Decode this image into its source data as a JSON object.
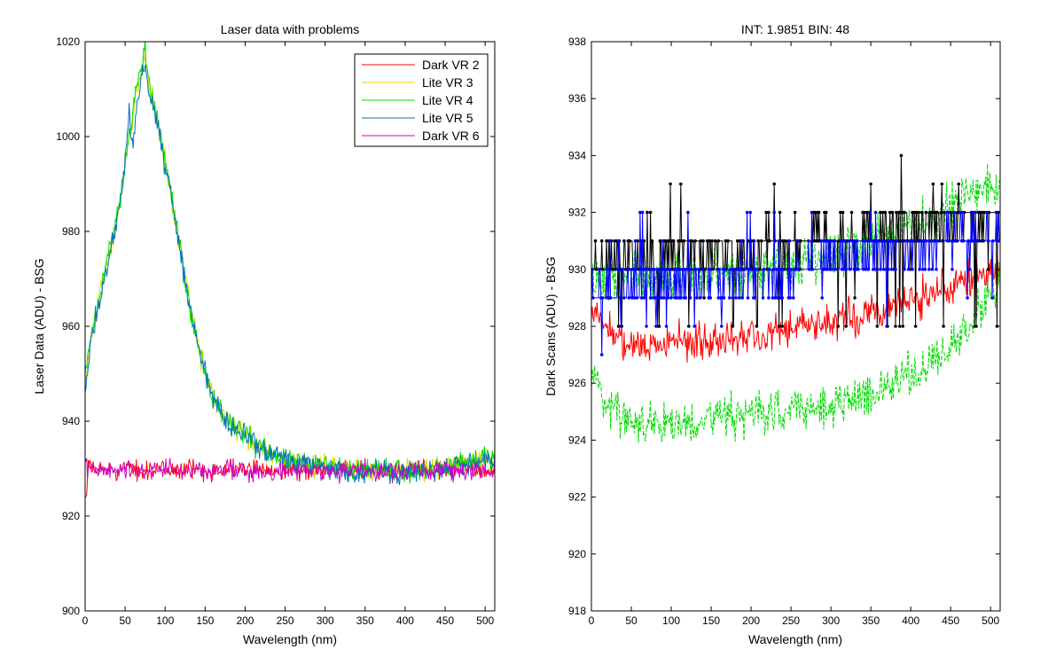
{
  "chart_data": [
    {
      "type": "line",
      "title": "Laser data with problems",
      "xlabel": "Wavelength (nm)",
      "ylabel": "Laser Data (ADU) - BSG",
      "xlim": [
        0,
        512
      ],
      "ylim": [
        900,
        1020
      ],
      "xticks": [
        0,
        50,
        100,
        150,
        200,
        250,
        300,
        350,
        400,
        450,
        500
      ],
      "yticks": [
        900,
        920,
        940,
        960,
        980,
        1000,
        1020
      ],
      "legend_position": "top-right",
      "grid": false,
      "series": [
        {
          "name": "Dark VR 2",
          "color": "#ff0000",
          "shape": "flat",
          "baseline": 929.8,
          "noise": 1.5,
          "start": 924
        },
        {
          "name": "Lite VR 3",
          "color": "#d9d900",
          "shape": "peak",
          "x": [
            0,
            10,
            20,
            30,
            40,
            50,
            60,
            70,
            75,
            80,
            90,
            100,
            110,
            120,
            130,
            140,
            150,
            160,
            170,
            180,
            190,
            200,
            220,
            240,
            260,
            280,
            300,
            350,
            400,
            450,
            512
          ],
          "y": [
            948,
            960,
            968,
            975,
            982,
            993,
            1005,
            1014,
            1018,
            1010,
            1004,
            995,
            985,
            975,
            965,
            957,
            950,
            945,
            942,
            940,
            938,
            937,
            934.5,
            932.5,
            931.5,
            931,
            930.5,
            929.5,
            929.5,
            930.5,
            932
          ],
          "noise": 1.8
        },
        {
          "name": "Lite VR 4",
          "color": "#00e000",
          "shape": "peak",
          "x": [
            0,
            10,
            20,
            30,
            40,
            50,
            60,
            70,
            75,
            80,
            90,
            100,
            110,
            120,
            130,
            140,
            150,
            160,
            170,
            180,
            190,
            200,
            220,
            240,
            260,
            280,
            300,
            350,
            400,
            450,
            512
          ],
          "y": [
            949,
            960,
            968,
            976,
            983,
            994,
            1006,
            1016,
            1019,
            1011,
            1004,
            995,
            985,
            975,
            965,
            957,
            950,
            945,
            942,
            940,
            938,
            937,
            934.5,
            932.5,
            931.5,
            931,
            930.5,
            929.5,
            929.5,
            930.5,
            932.5
          ],
          "noise": 1.8
        },
        {
          "name": "Lite VR 5",
          "color": "#0072bd",
          "shape": "peak",
          "x": [
            0,
            10,
            20,
            30,
            40,
            50,
            55,
            60,
            70,
            75,
            80,
            90,
            100,
            110,
            120,
            130,
            140,
            150,
            160,
            170,
            180,
            190,
            200,
            220,
            240,
            260,
            280,
            300,
            350,
            400,
            450,
            512
          ],
          "y": [
            947,
            959,
            967,
            975,
            982,
            994,
            1005,
            998,
            1013,
            1016,
            1009,
            1003,
            994,
            985,
            975,
            965,
            957,
            950,
            945,
            942,
            940,
            938,
            937,
            934.5,
            932.5,
            931.5,
            931,
            930.5,
            929,
            929,
            930.5,
            932
          ],
          "noise": 1.8
        },
        {
          "name": "Dark VR 6",
          "color": "#cc00cc",
          "shape": "flat",
          "baseline": 929.6,
          "noise": 1.6,
          "start": 932
        }
      ]
    },
    {
      "type": "line",
      "title": "INT: 1.9851    BIN: 48",
      "xlabel": "Wavelength (nm)",
      "ylabel": "Dark Scans (ADU) - BSG",
      "xlim": [
        0,
        512
      ],
      "ylim": [
        918,
        938
      ],
      "xticks": [
        0,
        50,
        100,
        150,
        200,
        250,
        300,
        350,
        400,
        450,
        500
      ],
      "yticks": [
        918,
        920,
        922,
        924,
        926,
        928,
        930,
        932,
        934,
        936,
        938
      ],
      "legend_position": "none",
      "grid": false,
      "series": [
        {
          "color": "#ff0000",
          "style": "solid",
          "x": [
            0,
            20,
            50,
            100,
            150,
            200,
            250,
            300,
            350,
            400,
            450,
            512
          ],
          "y": [
            928.5,
            928,
            927.3,
            927.4,
            927.5,
            927.7,
            927.9,
            928.2,
            928.5,
            928.9,
            929.4,
            930.2
          ],
          "noise": 0.5
        },
        {
          "color": "#00dd00",
          "style": "dashed",
          "x": [
            0,
            20,
            50,
            100,
            150,
            200,
            250,
            300,
            350,
            400,
            450,
            512
          ],
          "y": [
            926.5,
            925.2,
            924.7,
            924.6,
            924.8,
            924.9,
            925.0,
            925.3,
            925.7,
            926.3,
            927.3,
            929.5
          ],
          "noise": 0.6
        },
        {
          "color": "#00dd00",
          "style": "dashed",
          "x": [
            0,
            20,
            50,
            100,
            150,
            200,
            250,
            300,
            350,
            400,
            450,
            512
          ],
          "y": [
            929.5,
            929.6,
            929.7,
            929.8,
            929.9,
            930.0,
            930.2,
            930.6,
            931.0,
            931.5,
            932.3,
            933.0
          ],
          "noise": 0.6
        },
        {
          "color": "#000000",
          "style": "markers",
          "levels": [
            930,
            931,
            932
          ],
          "x": [
            0,
            100,
            200,
            300,
            400,
            512
          ],
          "y": [
            930.2,
            930.5,
            930.8,
            931.1,
            931.5,
            932.0
          ],
          "noise": 0.45
        },
        {
          "color": "#0000ff",
          "style": "markers",
          "levels": [
            929,
            930,
            931,
            932
          ],
          "x": [
            0,
            100,
            200,
            300,
            400,
            512
          ],
          "y": [
            929.4,
            929.6,
            929.8,
            930.2,
            930.7,
            931.3
          ],
          "noise": 0.45
        }
      ]
    }
  ]
}
